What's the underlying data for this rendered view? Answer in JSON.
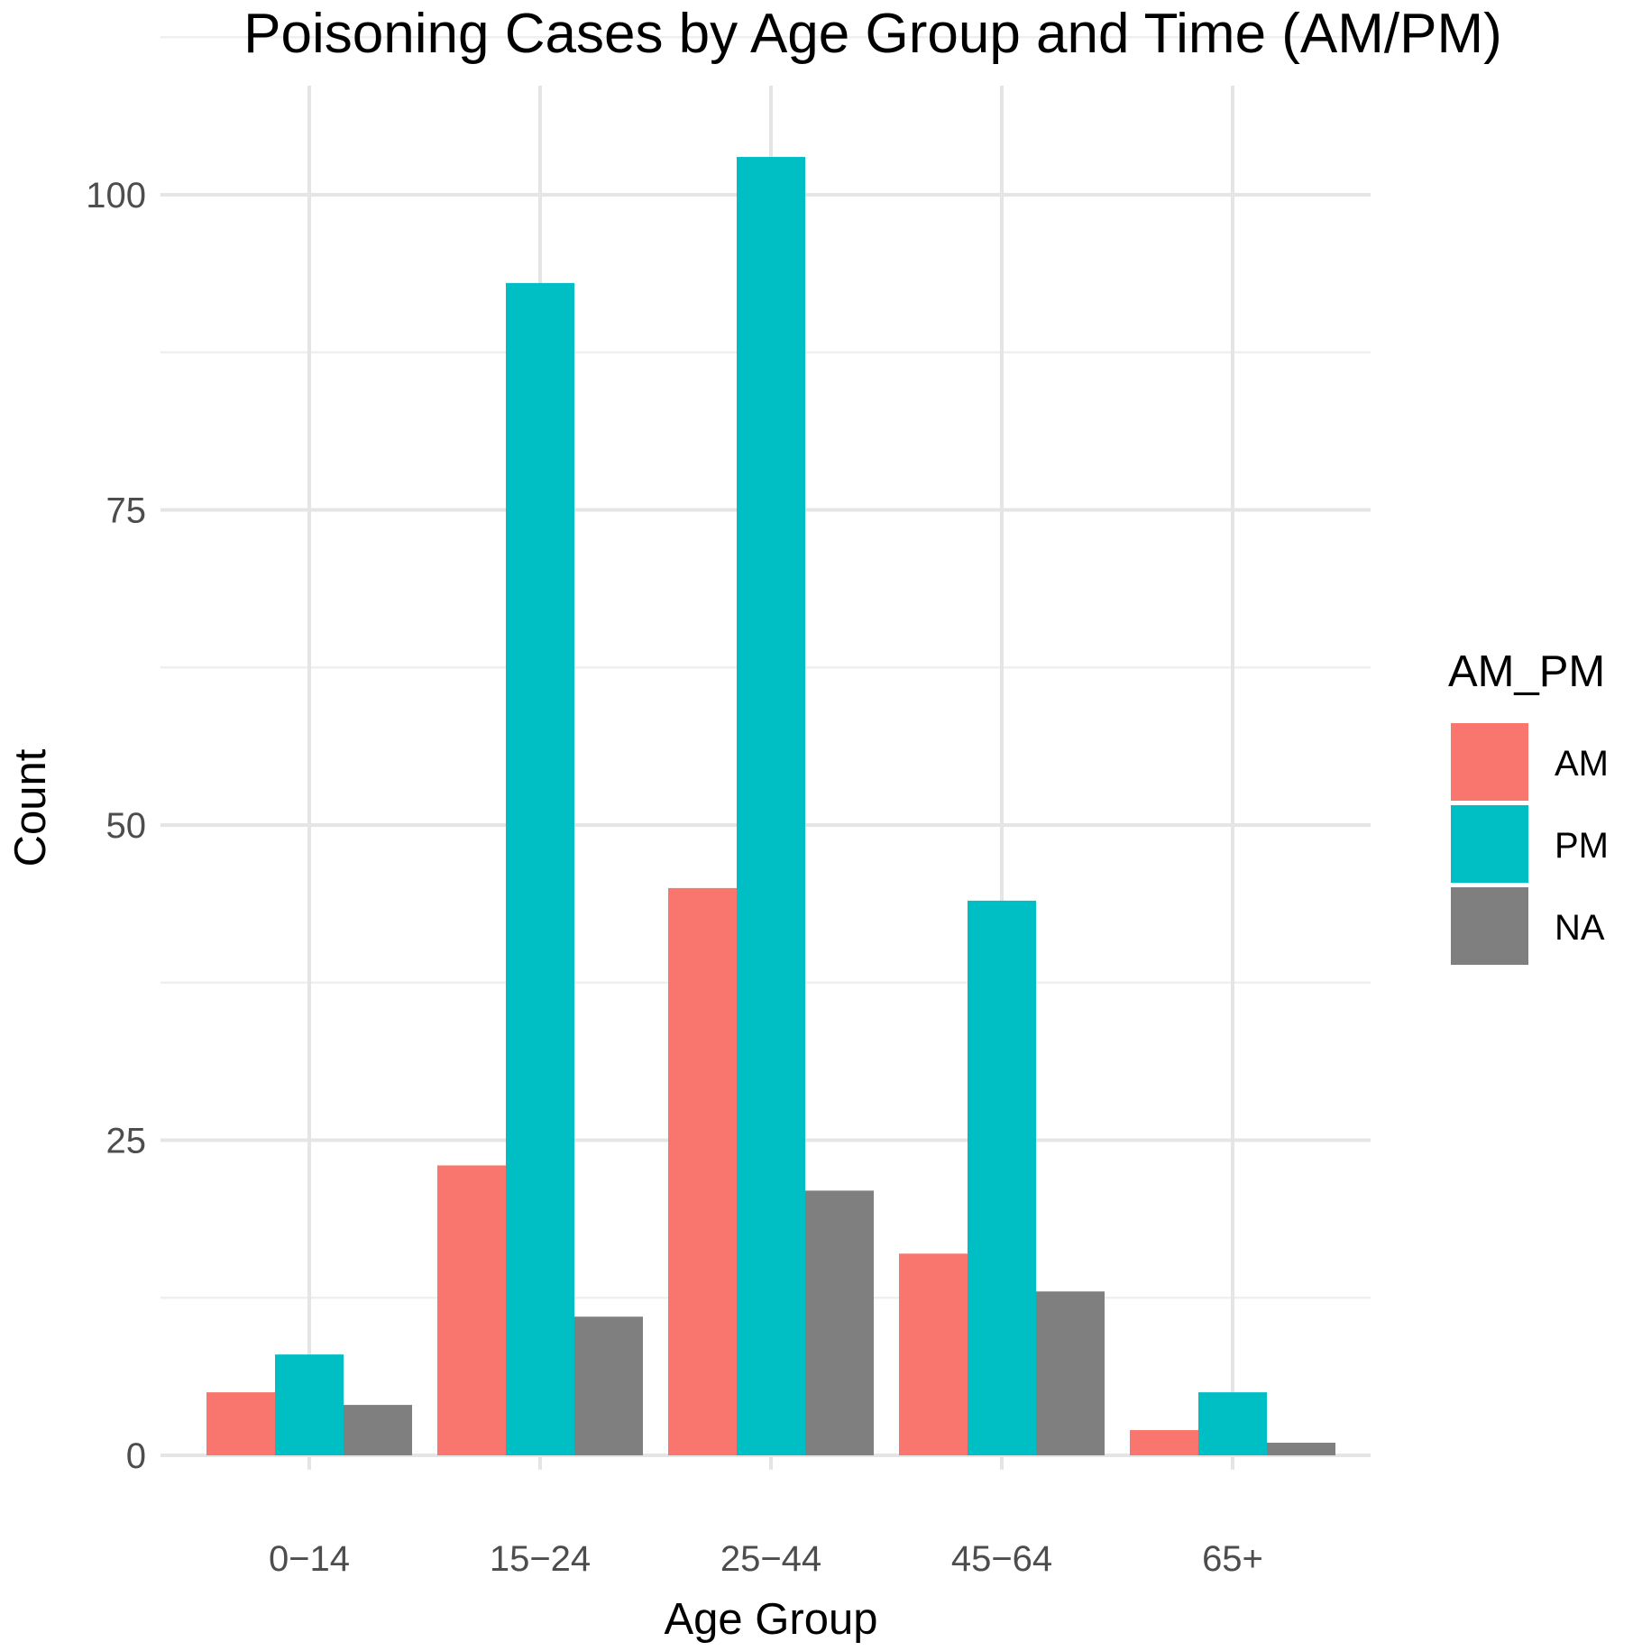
{
  "chart_data": {
    "type": "bar",
    "title": "Poisoning Cases by Age Group and Time (AM/PM)",
    "xlabel": "Age Group",
    "ylabel": "Count",
    "categories": [
      "0−14",
      "15−24",
      "25−44",
      "45−64",
      "65+"
    ],
    "series": [
      {
        "name": "AM",
        "color": "#F8766D",
        "values": [
          5,
          23,
          45,
          16,
          2
        ]
      },
      {
        "name": "PM",
        "color": "#00BFC4",
        "values": [
          8,
          93,
          103,
          44,
          5
        ]
      },
      {
        "name": "NA",
        "color": "#7F7F7F",
        "values": [
          4,
          11,
          21,
          13,
          1
        ]
      }
    ],
    "ylim": [
      0,
      108
    ],
    "yticks": [
      0,
      25,
      50,
      75,
      100
    ],
    "grid": true,
    "legend": {
      "title": "AM_PM",
      "position": "right"
    }
  }
}
